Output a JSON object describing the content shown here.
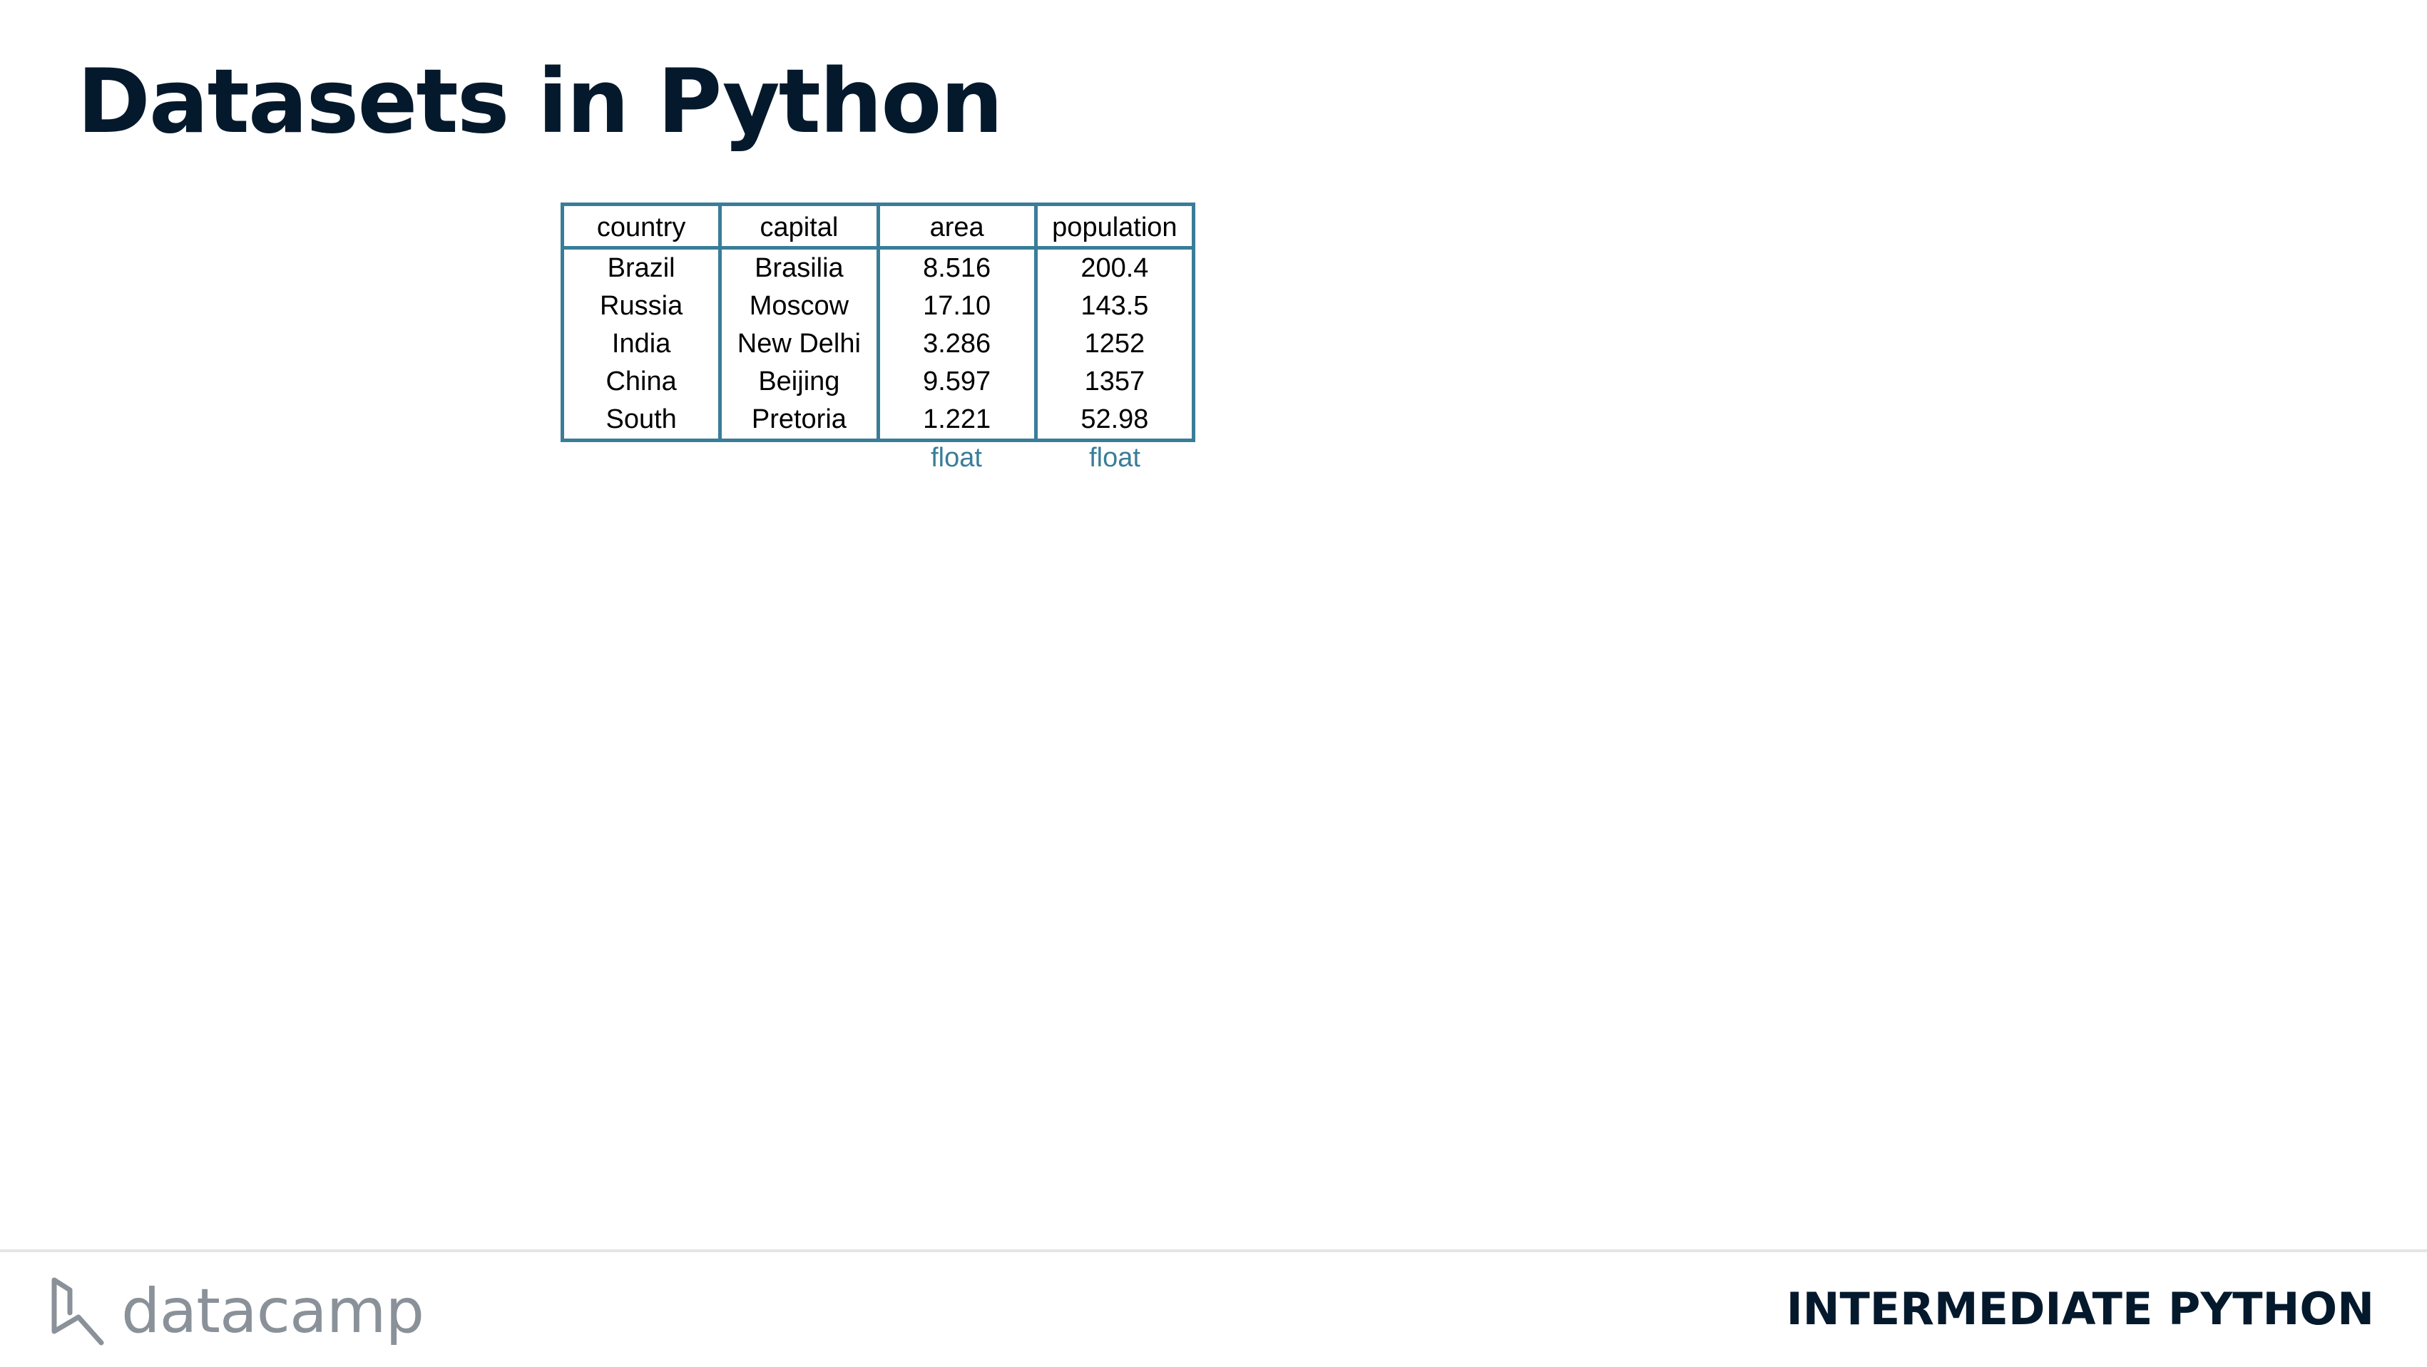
{
  "slide": {
    "title": "Datasets in Python"
  },
  "table": {
    "columns": [
      "country",
      "capital",
      "area",
      "population"
    ],
    "rows": [
      [
        "Brazil",
        "Brasilia",
        "8.516",
        "200.4"
      ],
      [
        "Russia",
        "Moscow",
        "17.10",
        "143.5"
      ],
      [
        "India",
        "New Delhi",
        "3.286",
        "1252"
      ],
      [
        "China",
        "Beijing",
        "9.597",
        "1357"
      ],
      [
        "South",
        "Pretoria",
        "1.221",
        "52.98"
      ]
    ],
    "type_labels": {
      "area": "float",
      "population": "float"
    }
  },
  "footer": {
    "brand": "datacamp",
    "course": "INTERMEDIATE PYTHON"
  },
  "colors": {
    "table_border": "#3a7d99",
    "title": "#05192d",
    "logo": "#8a9199"
  },
  "icons": {
    "logo": "datacamp-logo-icon"
  }
}
